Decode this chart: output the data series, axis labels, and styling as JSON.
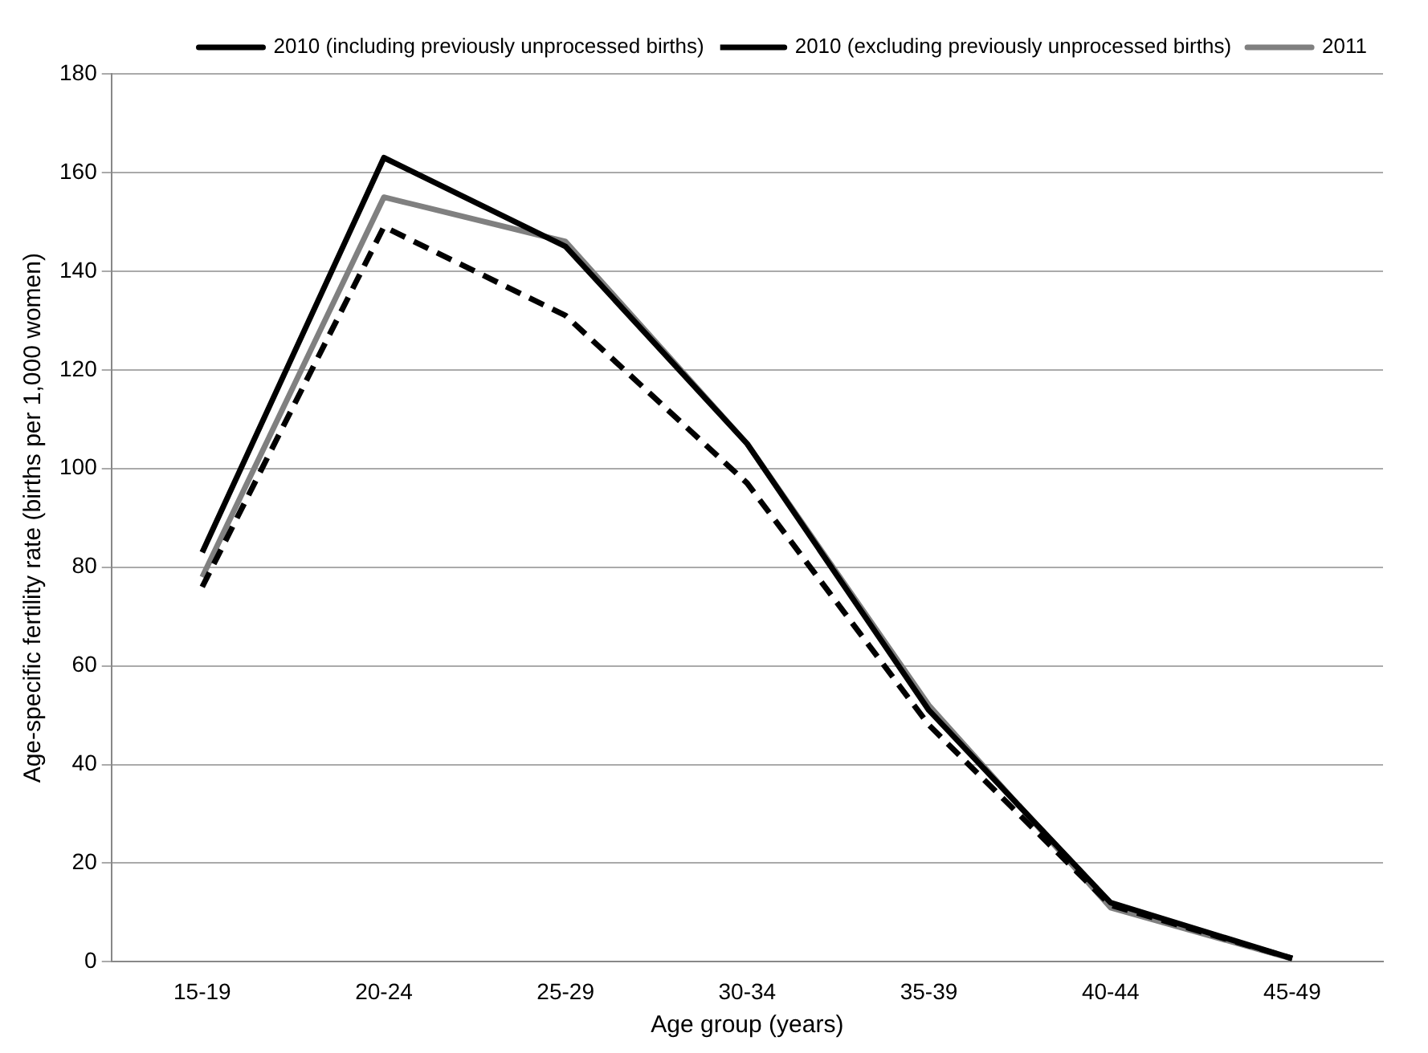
{
  "chart_data": {
    "type": "line",
    "xlabel": "Age group (years)",
    "ylabel": "Age-specific fertility rate (births per 1,000 women)",
    "categories": [
      "15-19",
      "20-24",
      "25-29",
      "30-34",
      "35-39",
      "40-44",
      "45-49"
    ],
    "series": [
      {
        "name": "2010 (including previously unprocessed births)",
        "color": "#000000",
        "line_style": "solid",
        "values": [
          83,
          163,
          145,
          105,
          51,
          12,
          0.7
        ]
      },
      {
        "name": "2010 (excluding previously unprocessed births)",
        "color": "#000000",
        "line_style": "dashed",
        "values": [
          76,
          149,
          131,
          97,
          48,
          11.5,
          0.7
        ]
      },
      {
        "name": "2011",
        "color": "#808080",
        "line_style": "solid",
        "values": [
          78,
          155,
          146,
          105,
          52,
          11,
          0.6
        ]
      }
    ],
    "ylim": [
      0,
      180
    ],
    "yticks": [
      0,
      20,
      40,
      60,
      80,
      100,
      120,
      140,
      160,
      180
    ],
    "grid": "y",
    "legend": "top right",
    "marker": "none"
  }
}
